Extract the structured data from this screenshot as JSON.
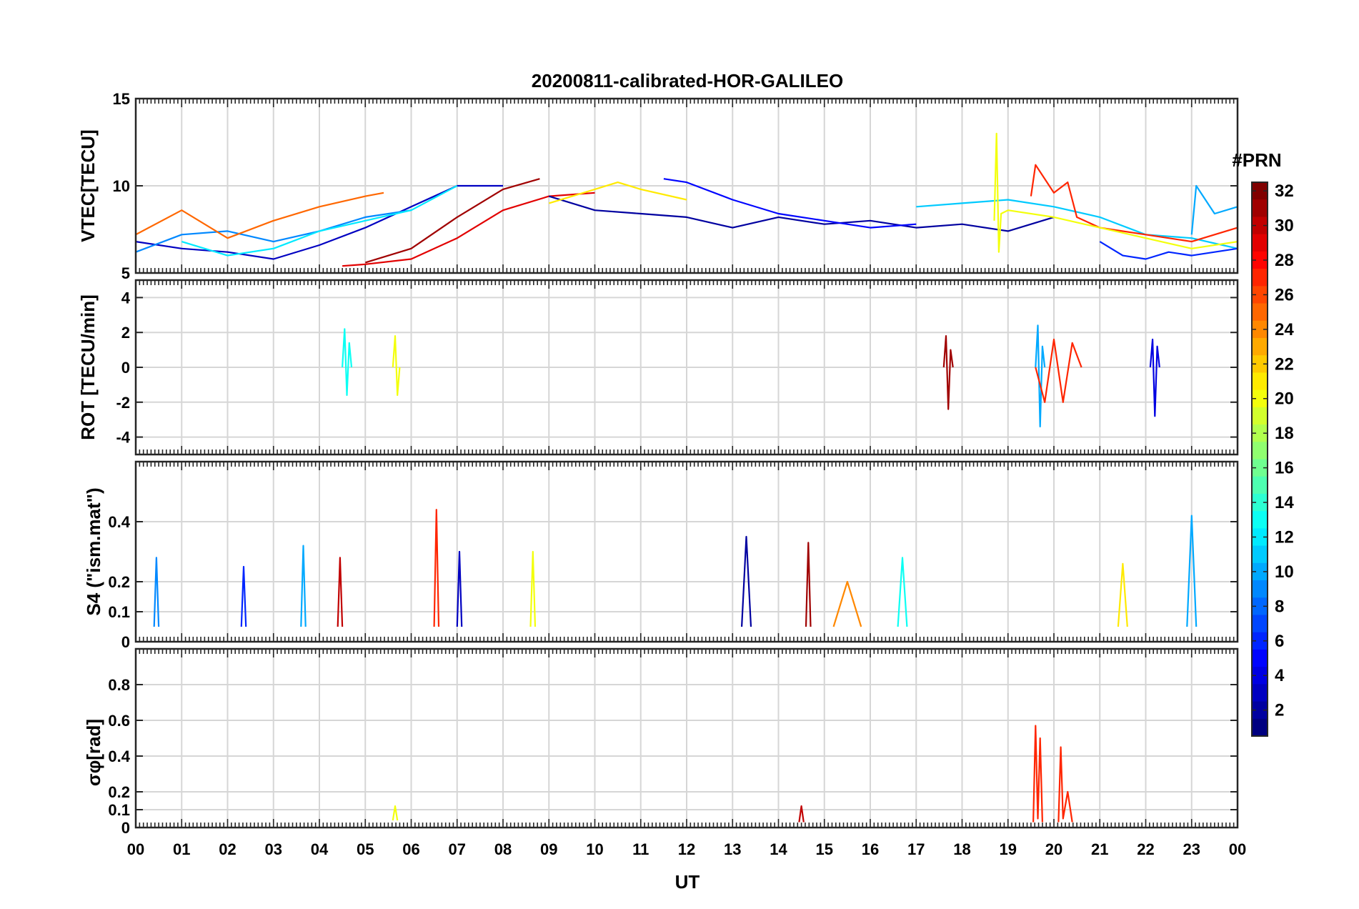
{
  "title": "20200811-calibrated-HOR-GALILEO",
  "xlabel": "UT",
  "x_ticks": [
    "00",
    "01",
    "02",
    "03",
    "04",
    "05",
    "06",
    "07",
    "08",
    "09",
    "10",
    "11",
    "12",
    "13",
    "14",
    "15",
    "16",
    "17",
    "18",
    "19",
    "20",
    "21",
    "22",
    "23",
    "00"
  ],
  "colorbar": {
    "title": "#PRN",
    "range": [
      1,
      32
    ],
    "ticks": [
      2,
      4,
      6,
      8,
      10,
      12,
      14,
      16,
      18,
      20,
      22,
      24,
      26,
      28,
      30,
      32
    ],
    "colormap": "jet"
  },
  "chart_data": [
    {
      "type": "line",
      "ylabel": "VTEC[TECU]",
      "xlim": [
        0,
        24
      ],
      "ylim": [
        5,
        15
      ],
      "yticks": [
        5,
        10,
        15
      ],
      "grid": true,
      "series": [
        {
          "prn": 3,
          "x": [
            0,
            1,
            2,
            3,
            4,
            5,
            6,
            7,
            8
          ],
          "y": [
            6.8,
            6.4,
            6.2,
            5.8,
            6.6,
            7.6,
            8.8,
            10.0,
            10.0
          ]
        },
        {
          "prn": 9,
          "x": [
            0,
            1,
            2,
            3,
            4,
            5,
            6
          ],
          "y": [
            6.2,
            7.2,
            7.4,
            6.8,
            7.4,
            8.2,
            8.6
          ]
        },
        {
          "prn": 12,
          "x": [
            1,
            2,
            3,
            4,
            5,
            6,
            7
          ],
          "y": [
            6.8,
            6.0,
            6.4,
            7.4,
            8.0,
            8.6,
            10.0
          ]
        },
        {
          "prn": 25,
          "x": [
            0,
            1,
            2,
            3,
            4,
            5,
            5.4
          ],
          "y": [
            7.2,
            8.6,
            7.0,
            8.0,
            8.8,
            9.4,
            9.6
          ]
        },
        {
          "prn": 29,
          "x": [
            4.5,
            5,
            6,
            7,
            8,
            9,
            10
          ],
          "y": [
            5.4,
            5.5,
            5.8,
            7.0,
            8.6,
            9.4,
            9.6
          ]
        },
        {
          "prn": 31,
          "x": [
            5,
            6,
            7,
            8,
            8.8
          ],
          "y": [
            5.6,
            6.4,
            8.2,
            9.8,
            10.4
          ]
        },
        {
          "prn": 2,
          "x": [
            9,
            10,
            11,
            12,
            13,
            14,
            15,
            16,
            17,
            18,
            19,
            20
          ],
          "y": [
            9.4,
            8.6,
            8.4,
            8.2,
            7.6,
            8.2,
            7.8,
            8.0,
            7.6,
            7.8,
            7.4,
            8.2
          ]
        },
        {
          "prn": 21,
          "x": [
            9,
            10,
            10.5,
            11,
            12
          ],
          "y": [
            9.0,
            9.8,
            10.2,
            9.8,
            9.2
          ]
        },
        {
          "prn": 5,
          "x": [
            11.5,
            12,
            13,
            14,
            15,
            16,
            17
          ],
          "y": [
            10.4,
            10.2,
            9.2,
            8.4,
            8.0,
            7.6,
            7.8
          ]
        },
        {
          "prn": 11,
          "x": [
            17,
            18,
            19,
            20,
            21,
            22,
            23,
            24
          ],
          "y": [
            8.8,
            9.0,
            9.2,
            8.8,
            8.2,
            7.2,
            7.0,
            6.4
          ]
        },
        {
          "prn": 27,
          "x": [
            19.5,
            19.6,
            20,
            20.3,
            20.5,
            21,
            22,
            23,
            24
          ],
          "y": [
            9.4,
            11.2,
            9.6,
            10.2,
            8.2,
            7.6,
            7.2,
            6.8,
            7.6
          ]
        },
        {
          "prn": 20,
          "x": [
            18.7,
            18.75,
            18.8,
            18.85,
            19,
            20,
            21,
            22,
            23,
            24
          ],
          "y": [
            8.0,
            13.0,
            6.2,
            8.4,
            8.6,
            8.2,
            7.6,
            7.0,
            6.4,
            6.8
          ]
        },
        {
          "prn": 6,
          "x": [
            21,
            21.5,
            22,
            22.5,
            23,
            24
          ],
          "y": [
            6.8,
            6.0,
            5.8,
            6.2,
            6.0,
            6.4
          ]
        },
        {
          "prn": 10,
          "x": [
            23,
            23.1,
            23.5,
            24
          ],
          "y": [
            7.2,
            10.0,
            8.4,
            8.8
          ]
        }
      ]
    },
    {
      "type": "line",
      "ylabel": "ROT [TECU/min]",
      "xlim": [
        0,
        24
      ],
      "ylim": [
        -5,
        5
      ],
      "yticks": [
        -4,
        -2,
        0,
        2,
        4
      ],
      "grid": true,
      "series": [
        {
          "prn": 13,
          "x": [
            4.5,
            4.55,
            4.6,
            4.65,
            4.7
          ],
          "y": [
            0,
            2.2,
            -1.6,
            1.4,
            0
          ]
        },
        {
          "prn": 20,
          "x": [
            5.6,
            5.65,
            5.7,
            5.75
          ],
          "y": [
            0,
            1.8,
            -1.6,
            0
          ]
        },
        {
          "prn": 31,
          "x": [
            17.6,
            17.65,
            17.7,
            17.75,
            17.8
          ],
          "y": [
            0,
            1.8,
            -2.4,
            1.0,
            0
          ]
        },
        {
          "prn": 10,
          "x": [
            19.6,
            19.65,
            19.7,
            19.75,
            19.8
          ],
          "y": [
            0,
            2.4,
            -3.4,
            1.2,
            0
          ]
        },
        {
          "prn": 27,
          "x": [
            19.6,
            19.8,
            20.0,
            20.2,
            20.4,
            20.6
          ],
          "y": [
            0,
            -2.0,
            1.6,
            -2.0,
            1.4,
            0
          ]
        },
        {
          "prn": 4,
          "x": [
            22.1,
            22.15,
            22.2,
            22.25,
            22.3
          ],
          "y": [
            0,
            1.6,
            -2.8,
            1.2,
            0
          ]
        }
      ]
    },
    {
      "type": "line",
      "ylabel": "S4 (\"ism.mat\")",
      "xlim": [
        0,
        24
      ],
      "ylim": [
        0,
        0.6
      ],
      "yticks": [
        0,
        0.1,
        0.2,
        0.4
      ],
      "grid": true,
      "series": [
        {
          "prn": 9,
          "x": [
            0.4,
            0.45,
            0.5
          ],
          "y": [
            0.05,
            0.28,
            0.05
          ]
        },
        {
          "prn": 6,
          "x": [
            2.3,
            2.35,
            2.4
          ],
          "y": [
            0.05,
            0.25,
            0.05
          ]
        },
        {
          "prn": 10,
          "x": [
            3.6,
            3.65,
            3.7
          ],
          "y": [
            0.05,
            0.32,
            0.05
          ]
        },
        {
          "prn": 30,
          "x": [
            4.4,
            4.45,
            4.5
          ],
          "y": [
            0.05,
            0.28,
            0.05
          ]
        },
        {
          "prn": 27,
          "x": [
            6.5,
            6.55,
            6.6
          ],
          "y": [
            0.05,
            0.44,
            0.05
          ]
        },
        {
          "prn": 3,
          "x": [
            7.0,
            7.05,
            7.1
          ],
          "y": [
            0.05,
            0.3,
            0.05
          ]
        },
        {
          "prn": 20,
          "x": [
            8.6,
            8.65,
            8.7
          ],
          "y": [
            0.05,
            0.3,
            0.05
          ]
        },
        {
          "prn": 2,
          "x": [
            13.2,
            13.3,
            13.4
          ],
          "y": [
            0.05,
            0.35,
            0.05
          ]
        },
        {
          "prn": 31,
          "x": [
            14.6,
            14.65,
            14.7
          ],
          "y": [
            0.05,
            0.33,
            0.05
          ]
        },
        {
          "prn": 24,
          "x": [
            15.2,
            15.5,
            15.8
          ],
          "y": [
            0.05,
            0.2,
            0.05
          ]
        },
        {
          "prn": 13,
          "x": [
            16.6,
            16.7,
            16.8
          ],
          "y": [
            0.05,
            0.28,
            0.05
          ]
        },
        {
          "prn": 21,
          "x": [
            21.4,
            21.5,
            21.6
          ],
          "y": [
            0.05,
            0.26,
            0.05
          ]
        },
        {
          "prn": 10,
          "x": [
            22.9,
            23.0,
            23.1
          ],
          "y": [
            0.05,
            0.42,
            0.05
          ]
        }
      ]
    },
    {
      "type": "line",
      "ylabel": "σφ[rad]",
      "xlim": [
        0,
        24
      ],
      "ylim": [
        0,
        1
      ],
      "yticks": [
        0,
        0.1,
        0.2,
        0.4,
        0.6,
        0.8
      ],
      "grid": true,
      "series": [
        {
          "prn": 27,
          "x": [
            19.55,
            19.6,
            19.65,
            19.7,
            19.75
          ],
          "y": [
            0.03,
            0.57,
            0.05,
            0.5,
            0.03
          ]
        },
        {
          "prn": 27,
          "x": [
            20.1,
            20.15,
            20.2,
            20.3,
            20.4
          ],
          "y": [
            0.03,
            0.45,
            0.05,
            0.2,
            0.03
          ]
        },
        {
          "prn": 30,
          "x": [
            14.45,
            14.5,
            14.55
          ],
          "y": [
            0.03,
            0.12,
            0.03
          ]
        },
        {
          "prn": 20,
          "x": [
            5.6,
            5.65,
            5.7
          ],
          "y": [
            0.04,
            0.12,
            0.04
          ]
        }
      ]
    }
  ]
}
